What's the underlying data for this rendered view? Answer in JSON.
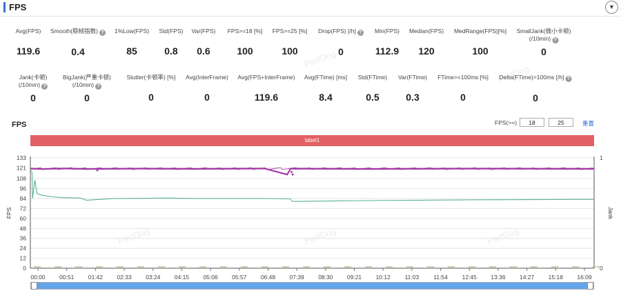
{
  "header": {
    "title": "FPS",
    "collapse_icon": "chevron-down-icon"
  },
  "metrics_row1": [
    {
      "label": "Avg(FPS)",
      "value": "119.6",
      "help": false
    },
    {
      "label": "Smooth(稳帧指数)",
      "value": "0.4",
      "help": true
    },
    {
      "label": "1%Low(FPS)",
      "value": "85",
      "help": false
    },
    {
      "label": "Std(FPS)",
      "value": "0.8",
      "help": false
    },
    {
      "label": "Var(FPS)",
      "value": "0.6",
      "help": false
    },
    {
      "label": "FPS>=18 [%]",
      "value": "100",
      "help": false
    },
    {
      "label": "FPS>=25 [%]",
      "value": "100",
      "help": false
    },
    {
      "label": "Drop(FPS) [/h]",
      "value": "0",
      "help": true
    },
    {
      "label": "Min(FPS)",
      "value": "112.9",
      "help": false
    },
    {
      "label": "Median(FPS)",
      "value": "120",
      "help": false
    },
    {
      "label": "MedRange(FPS)[%]",
      "value": "100",
      "help": false
    },
    {
      "label": "SmallJank(微小卡顿)",
      "label2": "(/10min)",
      "value": "0",
      "help": true
    }
  ],
  "metrics_row2": [
    {
      "label": "Jank(卡顿)",
      "label2": "(/10min)",
      "value": "0",
      "help": true
    },
    {
      "label": "BigJank(严重卡顿)",
      "label2": "(/10min)",
      "value": "0",
      "help": true
    },
    {
      "label": "Stutter(卡顿率) [%]",
      "value": "0",
      "help": false
    },
    {
      "label": "Avg(InterFrame)",
      "value": "0",
      "help": false
    },
    {
      "label": "Avg(FPS+InterFrame)",
      "value": "119.6",
      "help": false
    },
    {
      "label": "Avg(FTime) [ms]",
      "value": "8.4",
      "help": false
    },
    {
      "label": "Std(FTime)",
      "value": "0.5",
      "help": false
    },
    {
      "label": "Var(FTime)",
      "value": "0.3",
      "help": false
    },
    {
      "label": "FTime>=100ms [%]",
      "value": "0",
      "help": false
    },
    {
      "label": "Delta(FTime)>100ms [/h]",
      "value": "0",
      "help": true
    }
  ],
  "watermark": "PerfDog",
  "chart": {
    "title": "FPS",
    "threshold_label": "FPS(>=)",
    "threshold_1": "18",
    "threshold_2": "25",
    "reset_label": "重置",
    "band_label": "label1",
    "y_axis_label": "FPS",
    "right_axis_label": "Jank",
    "right_ticks": [
      "1",
      "0"
    ],
    "colors": {
      "fps": "#a33aa6",
      "ftime": "#5ab09a",
      "band": "#e06064",
      "scrollbar": "#63a5e8"
    }
  },
  "chart_data": {
    "type": "line",
    "title": "FPS",
    "xlabel": "",
    "ylabel": "FPS",
    "ylim": [
      0,
      133
    ],
    "yticks": [
      0,
      12,
      24,
      36,
      48,
      60,
      72,
      84,
      96,
      108,
      121,
      133
    ],
    "y2label": "Jank",
    "y2ticks": [
      0,
      1
    ],
    "xticks": [
      "00:00",
      "00:51",
      "01:42",
      "02:33",
      "03:24",
      "04:15",
      "05:06",
      "05:57",
      "06:48",
      "07:39",
      "08:30",
      "09:21",
      "10:12",
      "11:03",
      "11:54",
      "12:45",
      "13:36",
      "14:27",
      "15:18",
      "16:09"
    ],
    "xrange_seconds": [
      0,
      1010
    ],
    "grid": true,
    "series": [
      {
        "x": [
          0,
          20,
          60,
          100,
          200,
          300,
          420,
          460,
          466,
          470,
          600,
          800,
          1010
        ],
        "y": [
          120,
          119.5,
          120.2,
          119.6,
          120,
          119.7,
          120.1,
          112.9,
          119.8,
          120,
          119.6,
          120,
          119.7
        ]
      },
      {
        "x": [
          0,
          3,
          4,
          6,
          8,
          12,
          20,
          40,
          60,
          90,
          100,
          150,
          250,
          300,
          360,
          420,
          465,
          470,
          600,
          800,
          1010
        ],
        "y": [
          118,
          116,
          84,
          96,
          106,
          90,
          88,
          86,
          85,
          84.5,
          82,
          84,
          84.5,
          84,
          84,
          84,
          83.5,
          80.5,
          81.5,
          82.5,
          83
        ]
      }
    ]
  }
}
